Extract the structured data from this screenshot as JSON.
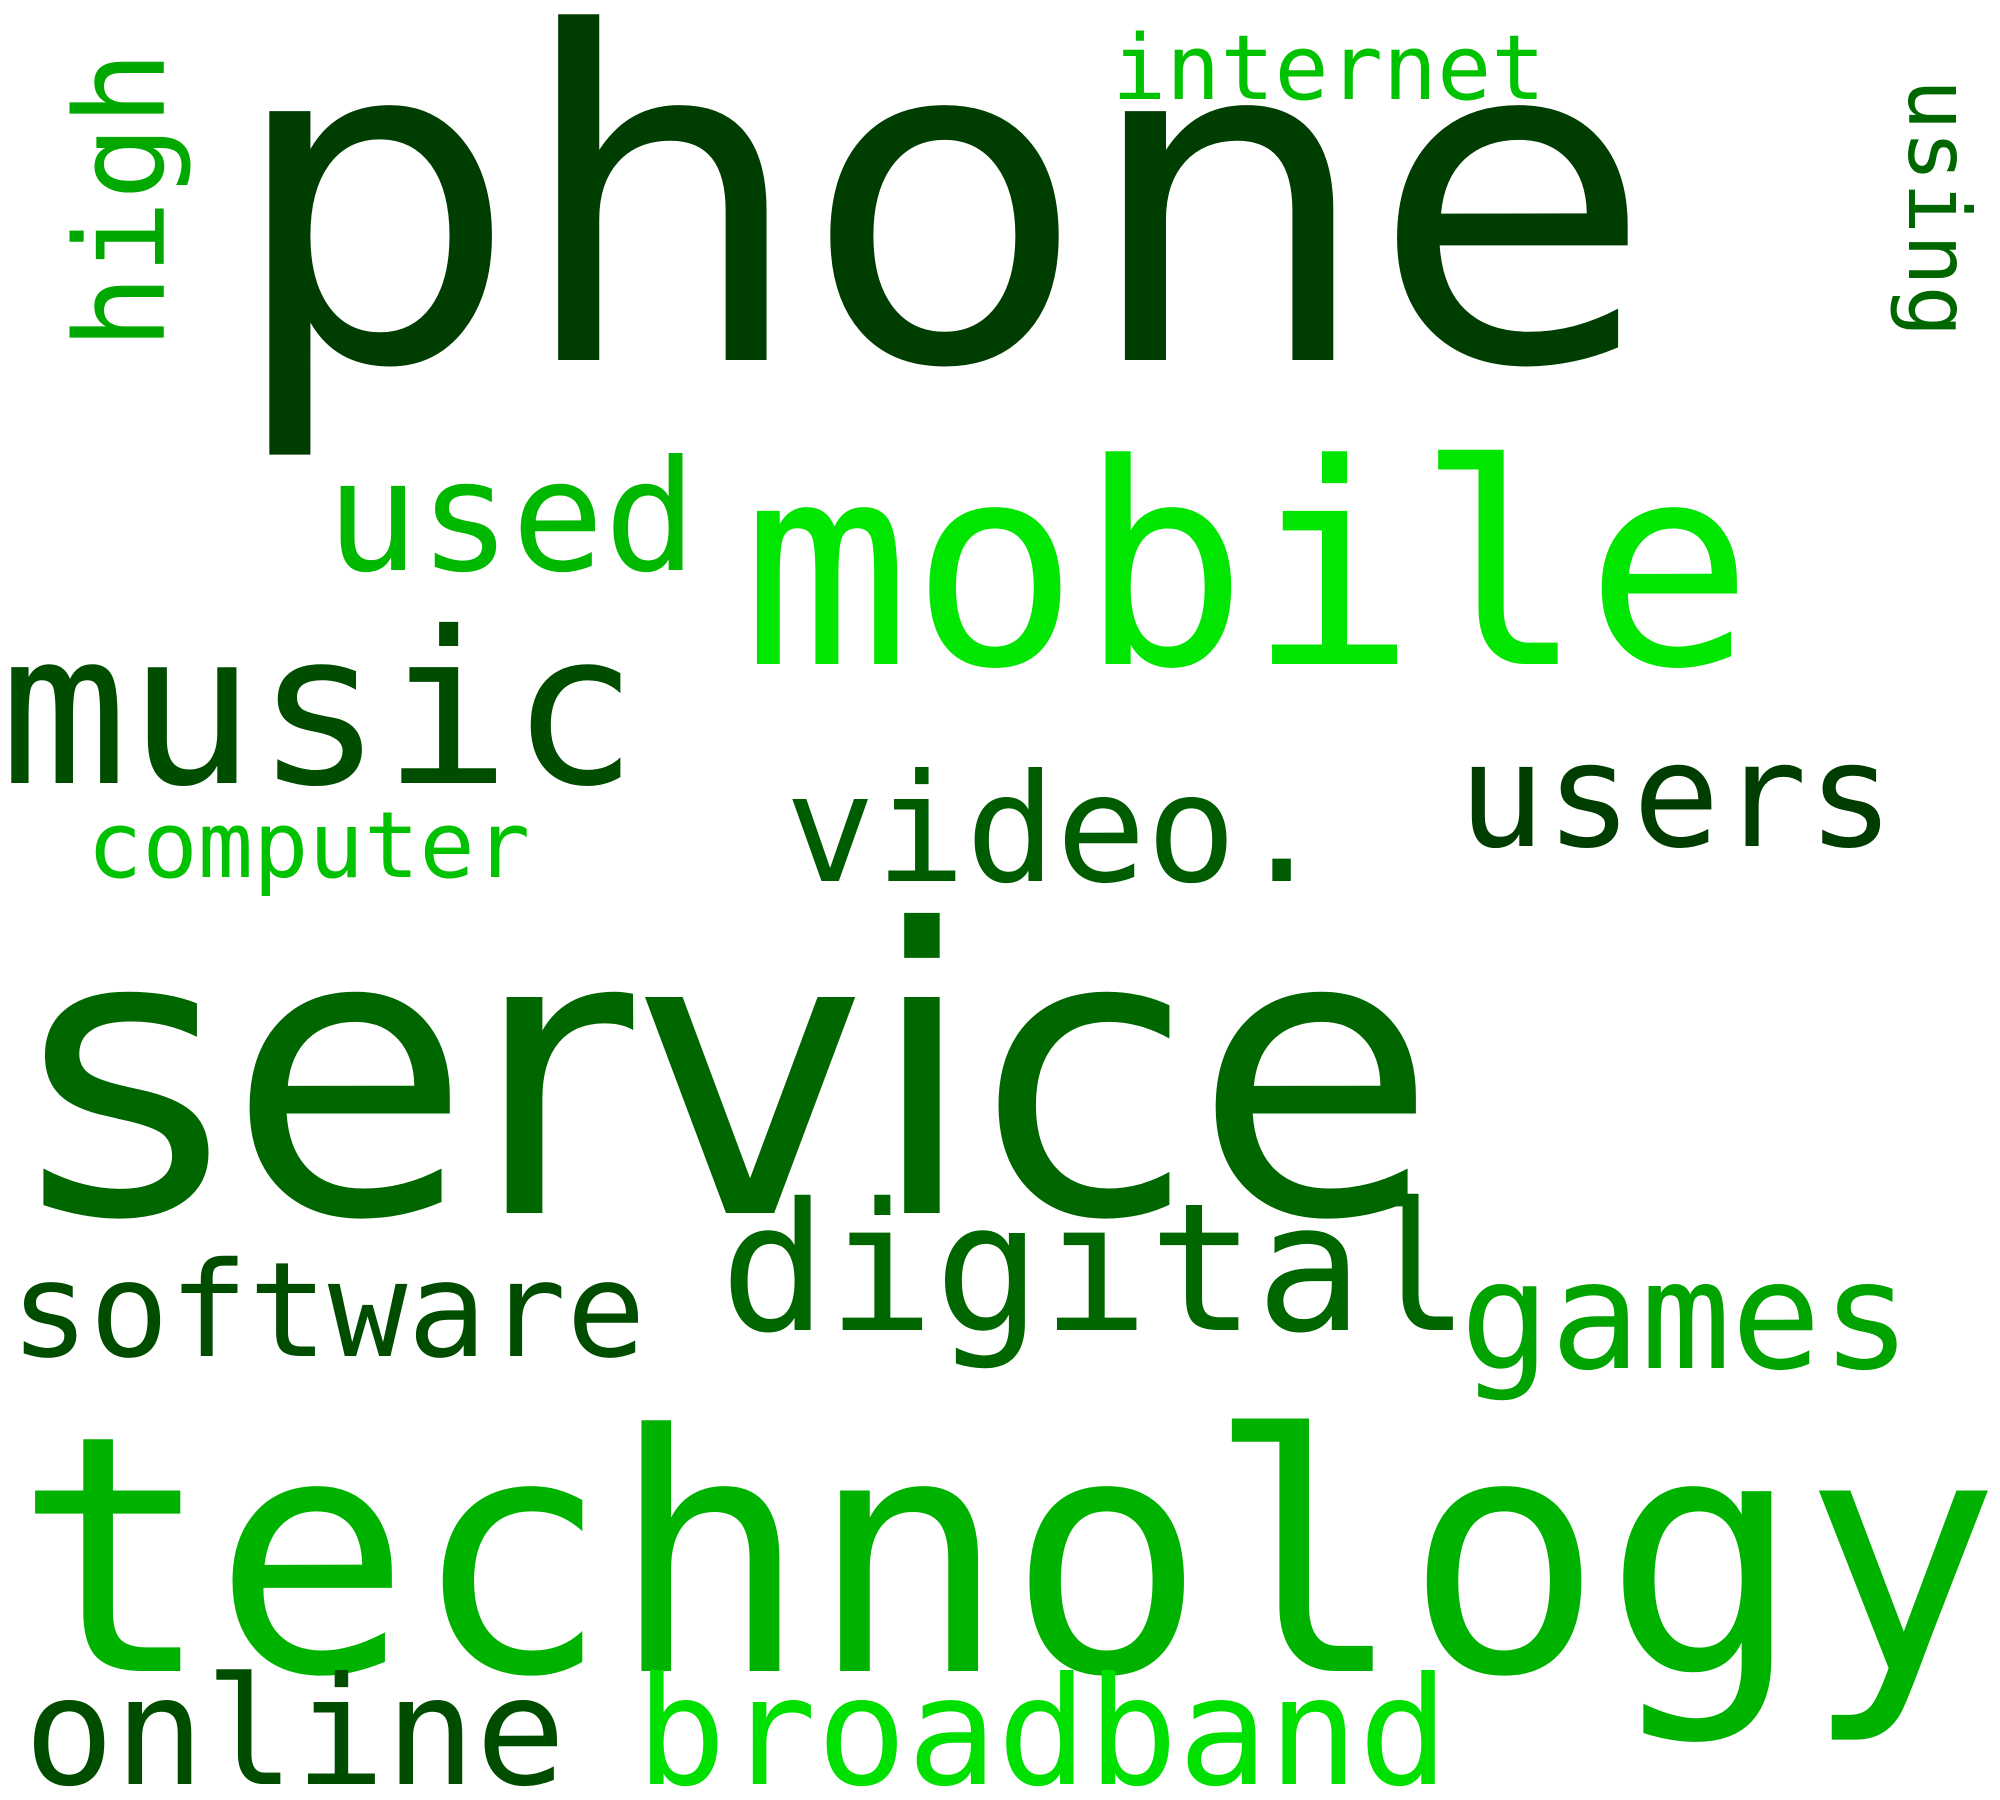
{
  "words": {
    "phone": {
      "text": "phone",
      "color": "#003d00"
    },
    "service": {
      "text": "service",
      "color": "#006600"
    },
    "technology": {
      "text": "technology",
      "color": "#00b200"
    },
    "mobile": {
      "text": "mobile",
      "color": "#00e600"
    },
    "music": {
      "text": "music",
      "color": "#004d00"
    },
    "digital": {
      "text": "digital",
      "color": "#006600"
    },
    "games": {
      "text": "games",
      "color": "#00a300"
    },
    "users": {
      "text": "users",
      "color": "#003d00"
    },
    "video": {
      "text": "video.",
      "color": "#005c00"
    },
    "software": {
      "text": "software",
      "color": "#004d00"
    },
    "broadband": {
      "text": "broadband",
      "color": "#00e000"
    },
    "online": {
      "text": "online",
      "color": "#004d00"
    },
    "used": {
      "text": "used",
      "color": "#00b800"
    },
    "computer": {
      "text": "computer",
      "color": "#00c200"
    },
    "internet": {
      "text": "internet",
      "color": "#00c200"
    },
    "high": {
      "text": "high",
      "color": "#00a800"
    },
    "using": {
      "text": "using",
      "color": "#006600"
    }
  }
}
